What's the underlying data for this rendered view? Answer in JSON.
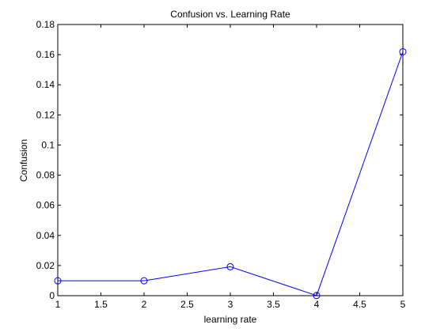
{
  "chart_data": {
    "type": "line",
    "title": "Confusion vs. Learning Rate",
    "xlabel": "learning rate",
    "ylabel": "Confusion",
    "xlim": [
      1,
      5
    ],
    "ylim": [
      0,
      0.18
    ],
    "x_ticks": [
      "1",
      "1.5",
      "2",
      "2.5",
      "3",
      "3.5",
      "4",
      "4.5",
      "5"
    ],
    "y_ticks": [
      "0",
      "0.02",
      "0.04",
      "0.06",
      "0.08",
      "0.1",
      "0.12",
      "0.14",
      "0.16",
      "0.18"
    ],
    "grid": false,
    "marker": "circle",
    "line_color": "#0000ff",
    "series": [
      {
        "x": [
          1,
          2,
          3,
          4,
          5
        ],
        "values": [
          0.0099,
          0.0099,
          0.0192,
          0.0001,
          0.1619
        ]
      }
    ]
  }
}
